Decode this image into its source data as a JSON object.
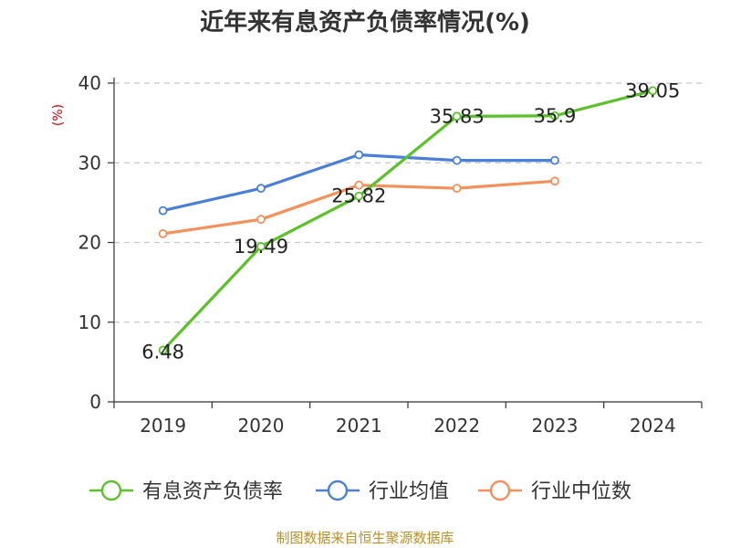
{
  "chart_data": {
    "type": "line",
    "title": "近年来有息资产负债率情况(%)",
    "ylabel": "(%)",
    "xlabel": "",
    "categories": [
      "2019",
      "2020",
      "2021",
      "2022",
      "2023",
      "2024"
    ],
    "ylim": [
      0,
      40
    ],
    "yticks": [
      0,
      10,
      20,
      30,
      40
    ],
    "grid": true,
    "legend_position": "bottom",
    "series": [
      {
        "name": "有息资产负债率",
        "color": "#5bc12a",
        "values": [
          6.48,
          19.49,
          25.82,
          35.83,
          35.9,
          39.05
        ],
        "labels": [
          "6.48",
          "19.49",
          "25.82",
          "35.83",
          "35.9",
          "39.05"
        ]
      },
      {
        "name": "行业均值",
        "color": "#4a7fd8",
        "values": [
          24.0,
          26.8,
          31.0,
          30.3,
          30.3,
          null
        ]
      },
      {
        "name": "行业中位数",
        "color": "#f4905a",
        "values": [
          21.1,
          22.9,
          27.2,
          26.8,
          27.7,
          null
        ]
      }
    ],
    "source": "制图数据来自恒生聚源数据库"
  }
}
